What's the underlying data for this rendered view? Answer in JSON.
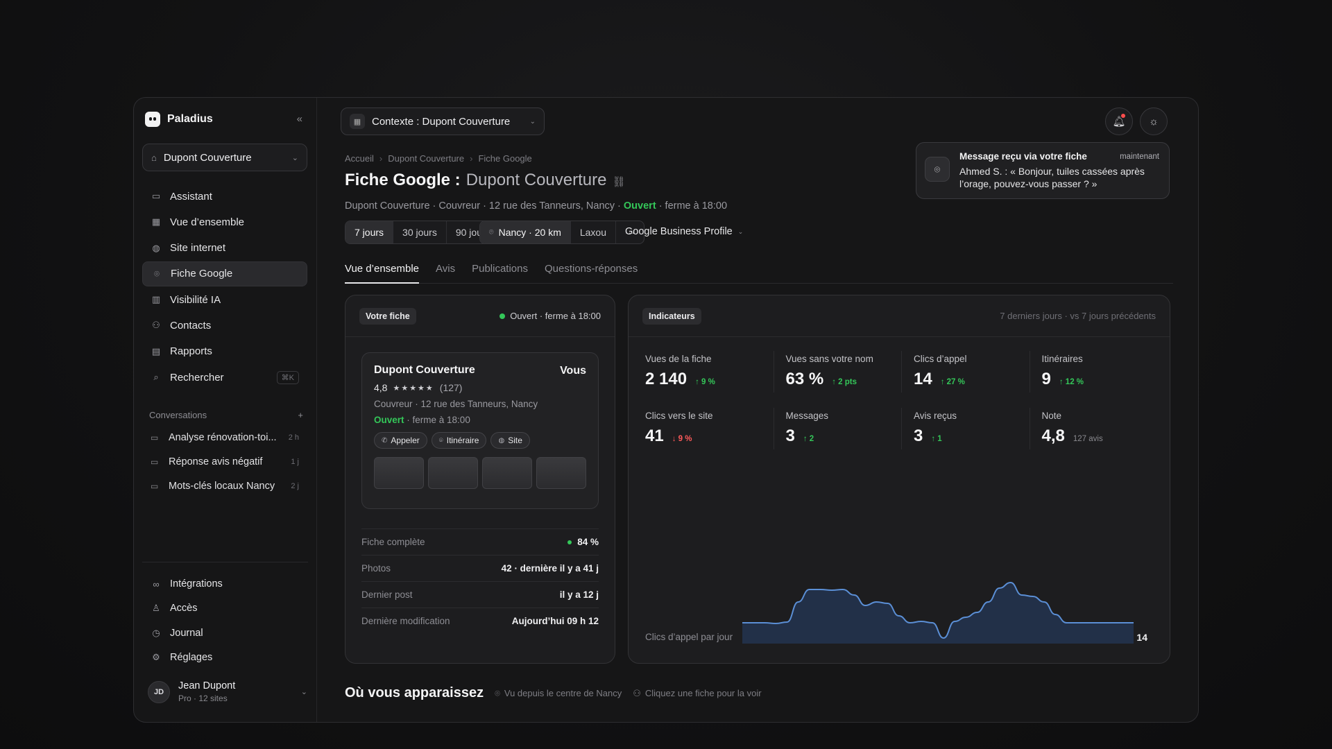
{
  "brand": {
    "name": "Paladius",
    "collapse_icon": "«"
  },
  "org": {
    "name": "Dupont Couverture"
  },
  "nav": [
    {
      "label": "Assistant",
      "icon": "chat-icon",
      "glyph": "▭"
    },
    {
      "label": "Vue d’ensemble",
      "icon": "grid-icon",
      "glyph": "▦"
    },
    {
      "label": "Site internet",
      "icon": "globe-icon",
      "glyph": "◍"
    },
    {
      "label": "Fiche Google",
      "icon": "pin-icon",
      "glyph": "⌾"
    },
    {
      "label": "Visibilité IA",
      "icon": "bar-chart-icon",
      "glyph": "▥"
    },
    {
      "label": "Contacts",
      "icon": "users-icon",
      "glyph": "⚇"
    },
    {
      "label": "Rapports",
      "icon": "report-icon",
      "glyph": "▤"
    },
    {
      "label": "Rechercher",
      "icon": "search-icon",
      "glyph": "⌕",
      "shortcut": "⌘K"
    }
  ],
  "conversations": {
    "heading": "Conversations",
    "add": "+",
    "items": [
      {
        "label": "Analyse rénovation-toi...",
        "age": "2 h"
      },
      {
        "label": "Réponse avis négatif",
        "age": "1 j"
      },
      {
        "label": "Mots-clés locaux Nancy",
        "age": "2 j"
      }
    ]
  },
  "footer_nav": [
    {
      "label": "Intégrations",
      "icon": "link-icon",
      "glyph": "∞"
    },
    {
      "label": "Accès",
      "icon": "user-icon",
      "glyph": "♙"
    },
    {
      "label": "Journal",
      "icon": "clock-icon",
      "glyph": "◷"
    },
    {
      "label": "Réglages",
      "icon": "settings-icon",
      "glyph": "⚙"
    }
  ],
  "user": {
    "initials": "JD",
    "name": "Jean Dupont",
    "plan": "Pro · 12 sites"
  },
  "context": {
    "label": "Contexte : Dupont Couverture"
  },
  "toast": {
    "title": "Message reçu via votre fiche",
    "time": "maintenant",
    "body": "Ahmed S. : « Bonjour, tuiles cassées après l’orage, pouvez-vous passer ? »"
  },
  "breadcrumb": [
    "Accueil",
    "Dupont Couverture",
    "Fiche Google"
  ],
  "page": {
    "title": "Fiche Google :",
    "subtitle": "Dupont Couverture",
    "meta_prefix": "Dupont Couverture · Couvreur · 12 rue des Tanneurs, Nancy ·",
    "meta_open": "Ouvert",
    "meta_suffix": "· ferme à 18:00"
  },
  "periods": [
    "7 jours",
    "30 jours",
    "90 jours"
  ],
  "locations": {
    "primary": "Nancy · 20 km",
    "secondary": "Laxou",
    "more": "···"
  },
  "source": "Google Business Profile",
  "tabs": [
    "Vue d’ensemble",
    "Avis",
    "Publications",
    "Questions-réponses"
  ],
  "profile_card": {
    "badge": "Votre fiche",
    "status": "Ouvert · ferme à 18:00",
    "listing": {
      "name": "Dupont Couverture",
      "you": "Vous",
      "rating": "4,8",
      "stars": "★★★★★",
      "reviews": "(127)",
      "address": "Couvreur · 12 rue des Tanneurs, Nancy",
      "open": "Ouvert",
      "closes": "· ferme à 18:00",
      "actions": [
        "Appeler",
        "Itinéraire",
        "Site"
      ]
    },
    "stats": [
      {
        "label": "Fiche complète",
        "value": "84 %"
      },
      {
        "label": "Photos",
        "value": "42 · dernière il y a 41 j"
      },
      {
        "label": "Dernier post",
        "value": "il y a 12 j"
      },
      {
        "label": "Dernière modification",
        "value": "Aujourd’hui 09 h 12"
      }
    ]
  },
  "indicators": {
    "badge": "Indicateurs",
    "note": "7 derniers jours · vs 7 jours précédents",
    "kpis": [
      {
        "label": "Vues de la fiche",
        "value": "2 140",
        "delta": "↑ 9 %",
        "trend": "up"
      },
      {
        "label": "Vues sans votre nom",
        "value": "63 %",
        "delta": "↑ 2 pts",
        "trend": "up"
      },
      {
        "label": "Clics d’appel",
        "value": "14",
        "delta": "↑ 27 %",
        "trend": "up"
      },
      {
        "label": "Itinéraires",
        "value": "9",
        "delta": "↑ 12 %",
        "trend": "up"
      },
      {
        "label": "Clics vers le site",
        "value": "41",
        "delta": "↓ 9 %",
        "trend": "down"
      },
      {
        "label": "Messages",
        "value": "3",
        "delta": "↑ 2",
        "trend": "up"
      },
      {
        "label": "Avis reçus",
        "value": "3",
        "delta": "↑ 1",
        "trend": "up"
      },
      {
        "label": "Note",
        "value": "4,8",
        "delta": "127 avis",
        "trend": "muted"
      }
    ],
    "spark_label": "Clics d’appel par jour",
    "spark_value": "14",
    "colors": {
      "line": "#5b8fd6",
      "fill": "#223048"
    }
  },
  "where": {
    "title": "Où vous apparaissez",
    "note1": "Vu depuis le centre de Nancy",
    "note2": "Cliquez une fiche pour la voir"
  }
}
